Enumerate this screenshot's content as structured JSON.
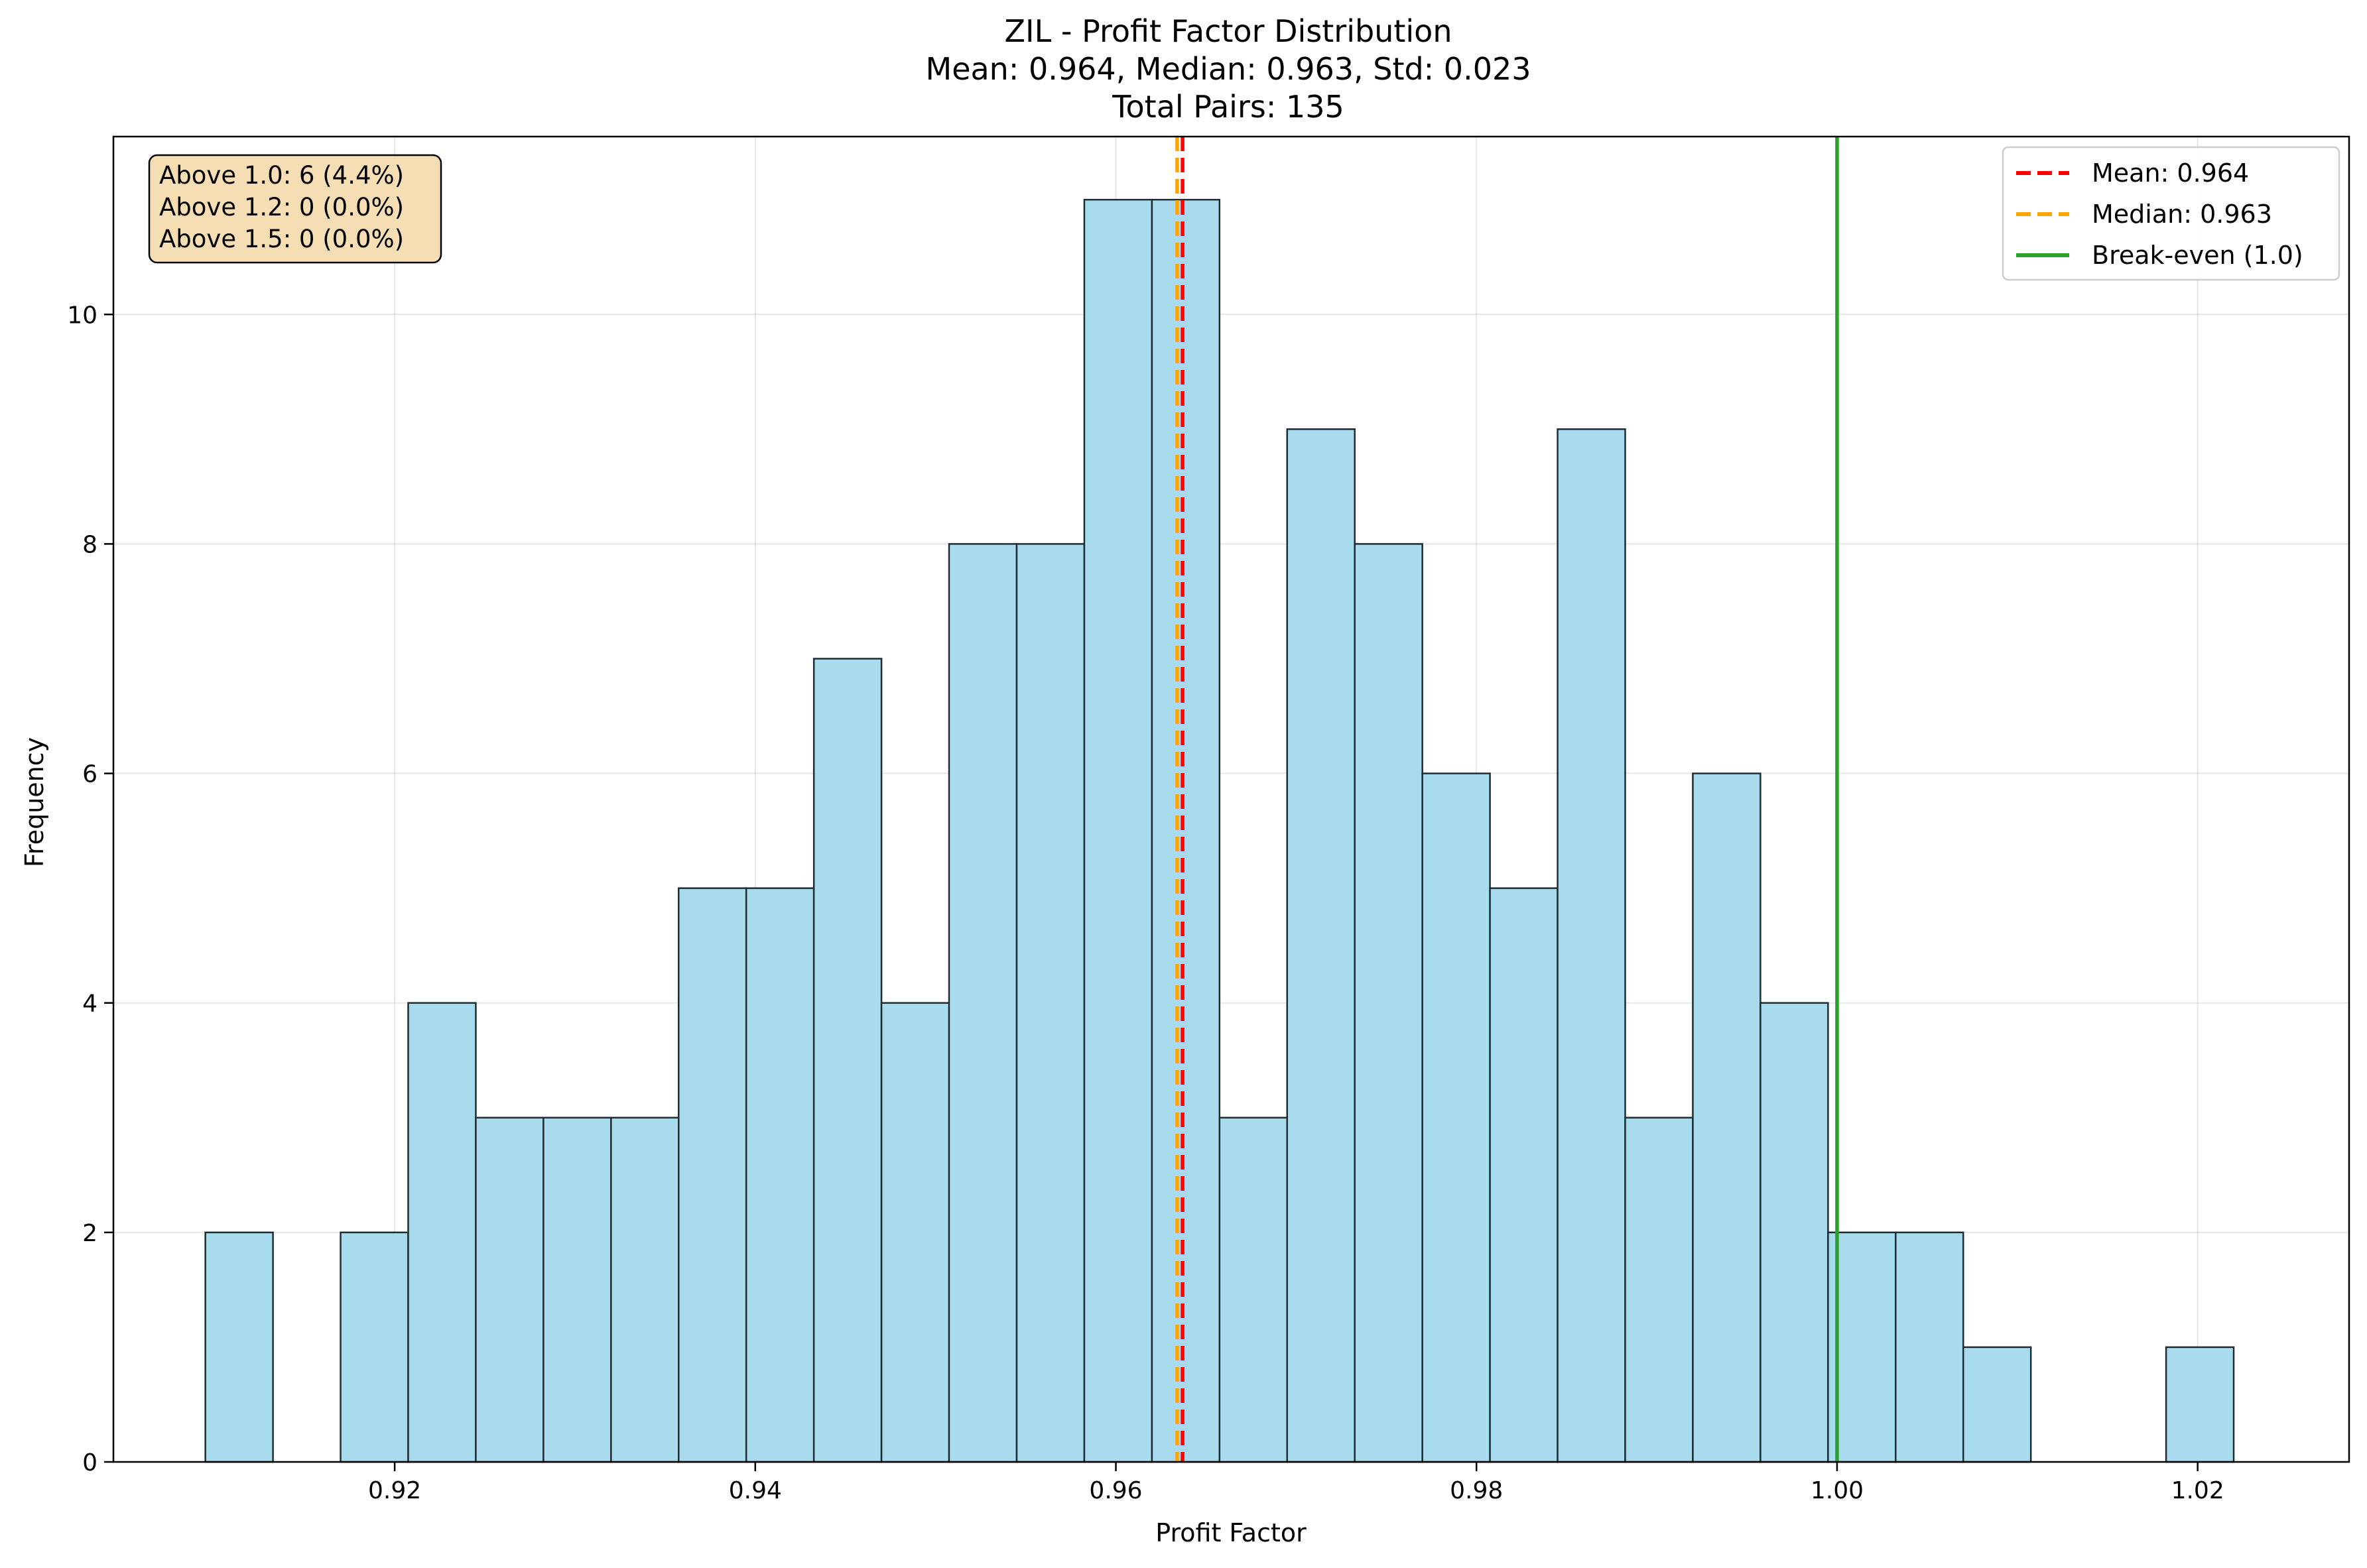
{
  "chart_data": {
    "type": "bar",
    "title": "ZIL - Profit Factor Distribution",
    "subtitle_lines": [
      "Mean: 0.964, Median: 0.963, Std: 0.023",
      "Total Pairs: 135"
    ],
    "xlabel": "Profit Factor",
    "ylabel": "Frequency",
    "xlim": [
      0.9044,
      1.0284
    ],
    "ylim": [
      0,
      11.55
    ],
    "x_ticks": [
      0.92,
      0.94,
      0.96,
      0.98,
      1.0,
      1.02
    ],
    "x_tick_labels": [
      "0.92",
      "0.94",
      "0.96",
      "0.98",
      "1.00",
      "1.02"
    ],
    "y_ticks": [
      0,
      2,
      4,
      6,
      8,
      10
    ],
    "y_tick_labels": [
      "0",
      "2",
      "4",
      "6",
      "8",
      "10"
    ],
    "grid": true,
    "bin_start": 0.9095,
    "bin_width": 0.00375,
    "values": [
      2,
      0,
      2,
      4,
      3,
      3,
      3,
      5,
      5,
      7,
      4,
      8,
      8,
      11,
      11,
      3,
      9,
      8,
      6,
      5,
      9,
      3,
      6,
      4,
      2,
      2,
      1,
      0,
      0,
      1
    ],
    "bar_color": "#a9dbee",
    "bar_edge_color": "#1f2d33",
    "reference_lines": [
      {
        "label": "Mean: 0.964",
        "x": 0.9637,
        "color": "#ff0000",
        "style": "dashed"
      },
      {
        "label": "Median: 0.963",
        "x": 0.9634,
        "color": "#ffa500",
        "style": "dashed"
      },
      {
        "label": "Break-even (1.0)",
        "x": 1.0,
        "color": "#2ca02c",
        "style": "solid"
      }
    ],
    "legend_position": "top-right",
    "stats_box": {
      "lines": [
        "Above 1.0: 6 (4.4%)",
        "Above 1.2: 0 (0.0%)",
        "Above 1.5: 0 (0.0%)"
      ],
      "background": "#f5deb3",
      "position": "top-left"
    }
  }
}
